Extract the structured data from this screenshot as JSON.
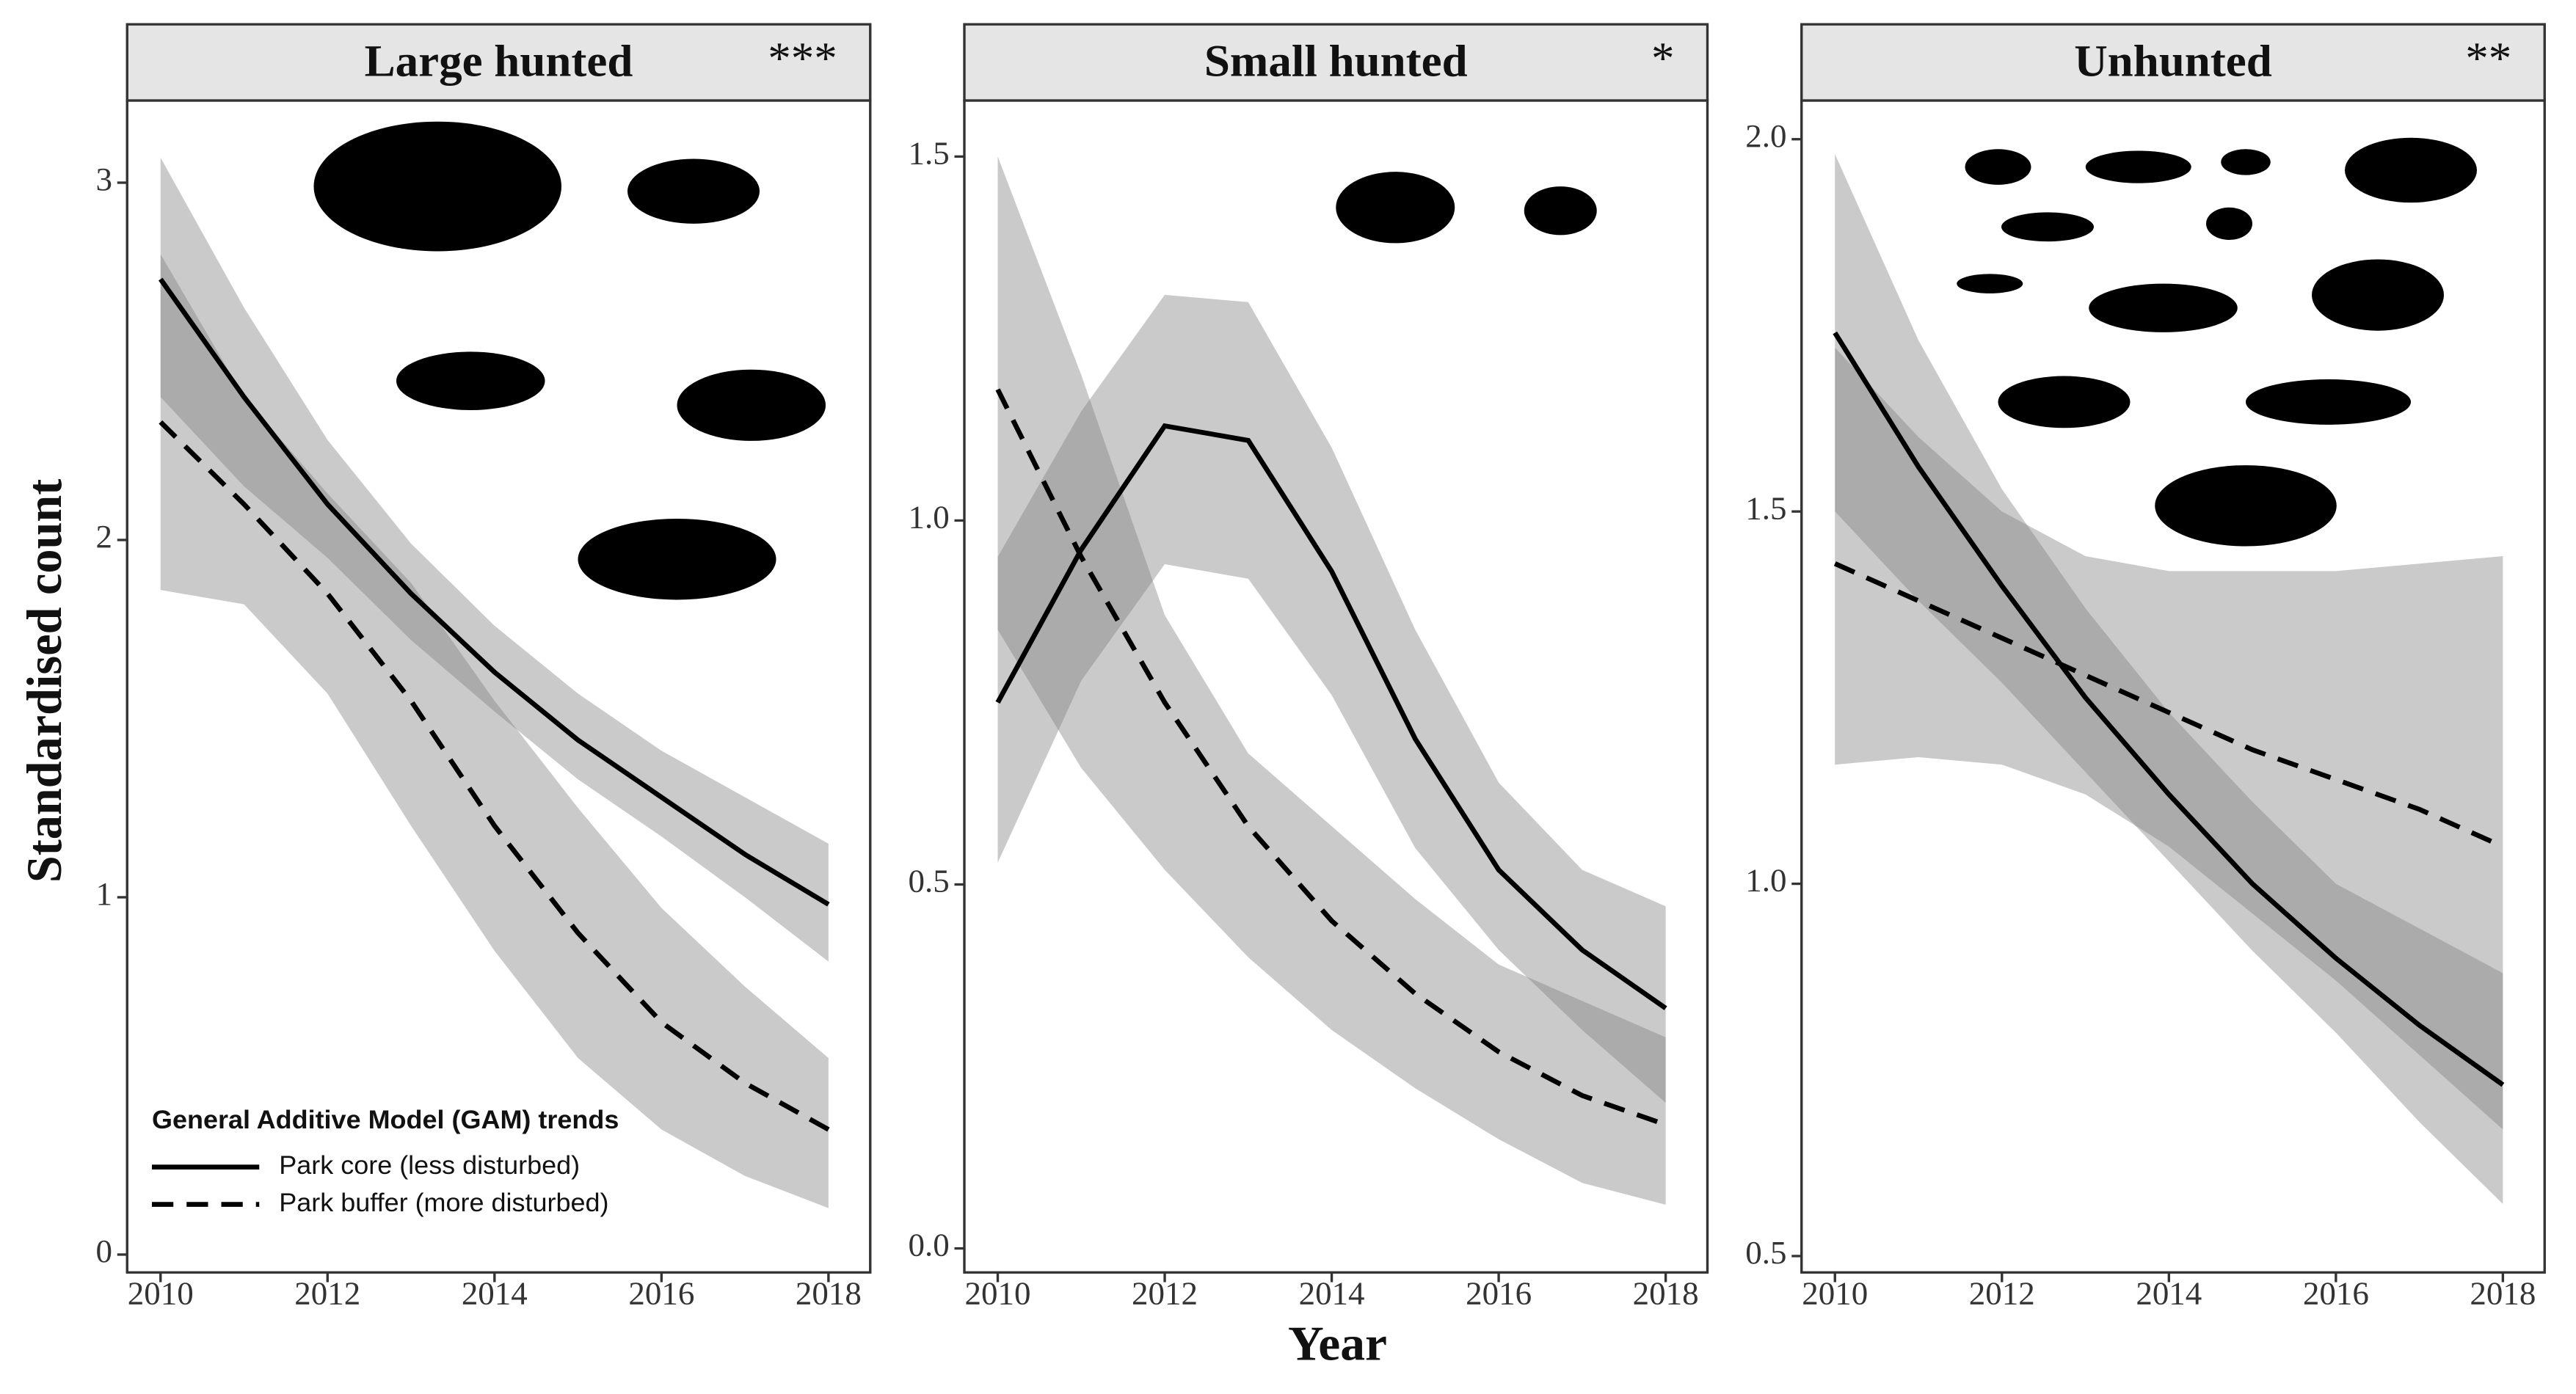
{
  "axis_titles": {
    "x": "Year",
    "y": "Standardised count"
  },
  "legend": {
    "title": "General Additive Model (GAM) trends",
    "entries": [
      "Park core (less disturbed)",
      "Park buffer (more disturbed)"
    ]
  },
  "chart_data": [
    {
      "type": "line",
      "title": "Large hunted",
      "significance": "***",
      "band_color": "#808080",
      "x": [
        2010,
        2011,
        2012,
        2013,
        2014,
        2015,
        2016,
        2017,
        2018
      ],
      "xlim": [
        2009.6,
        2018.5
      ],
      "xticks": [
        2010,
        2012,
        2014,
        2016,
        2018
      ],
      "ylim": [
        -0.05,
        3.23
      ],
      "yticks": [
        0,
        1,
        2,
        3
      ],
      "series": [
        {
          "name": "Park core (less disturbed)",
          "color": "#000000",
          "dashed": false,
          "values": [
            2.73,
            2.4,
            2.1,
            1.85,
            1.63,
            1.44,
            1.28,
            1.12,
            0.98
          ],
          "lower": [
            2.4,
            2.15,
            1.95,
            1.72,
            1.52,
            1.33,
            1.17,
            1.0,
            0.82
          ],
          "upper": [
            3.07,
            2.65,
            2.28,
            1.99,
            1.76,
            1.57,
            1.41,
            1.28,
            1.15
          ]
        },
        {
          "name": "Park buffer (more disturbed)",
          "color": "#000000",
          "dashed": true,
          "values": [
            2.33,
            2.1,
            1.85,
            1.55,
            1.2,
            0.9,
            0.65,
            0.48,
            0.35
          ],
          "lower": [
            1.86,
            1.82,
            1.57,
            1.2,
            0.85,
            0.55,
            0.35,
            0.22,
            0.13
          ],
          "upper": [
            2.8,
            2.4,
            2.13,
            1.88,
            1.55,
            1.25,
            0.97,
            0.75,
            0.55
          ]
        }
      ]
    },
    {
      "type": "line",
      "title": "Small hunted",
      "significance": "*",
      "band_color": "#808080",
      "x": [
        2010,
        2011,
        2012,
        2013,
        2014,
        2015,
        2016,
        2017,
        2018
      ],
      "xlim": [
        2009.6,
        2018.5
      ],
      "xticks": [
        2010,
        2012,
        2014,
        2016,
        2018
      ],
      "ylim": [
        -0.033,
        1.577
      ],
      "yticks": [
        {
          "value": 0,
          "label": "0.0"
        },
        0.5,
        {
          "value": 1,
          "label": "1.0"
        },
        1.5
      ],
      "series": [
        {
          "color": "#000000",
          "dashed": false,
          "values": [
            0.75,
            0.96,
            1.13,
            1.11,
            0.93,
            0.7,
            0.52,
            0.41,
            0.33
          ],
          "lower": [
            0.53,
            0.78,
            0.94,
            0.92,
            0.76,
            0.55,
            0.41,
            0.3,
            0.2
          ],
          "upper": [
            0.95,
            1.15,
            1.31,
            1.3,
            1.1,
            0.85,
            0.64,
            0.52,
            0.47
          ]
        },
        {
          "color": "#000000",
          "dashed": true,
          "values": [
            1.18,
            0.95,
            0.75,
            0.58,
            0.45,
            0.35,
            0.27,
            0.21,
            0.17
          ],
          "lower": [
            0.85,
            0.66,
            0.52,
            0.4,
            0.3,
            0.22,
            0.15,
            0.09,
            0.06
          ],
          "upper": [
            1.5,
            1.2,
            0.87,
            0.68,
            0.58,
            0.48,
            0.39,
            0.34,
            0.29
          ]
        }
      ]
    },
    {
      "type": "line",
      "title": "Unhunted",
      "significance": "**",
      "band_color": "#808080",
      "x": [
        2010,
        2011,
        2012,
        2013,
        2014,
        2015,
        2016,
        2017,
        2018
      ],
      "xlim": [
        2009.6,
        2018.5
      ],
      "xticks": [
        2010,
        2012,
        2014,
        2016,
        2018
      ],
      "ylim": [
        0.478,
        2.052
      ],
      "yticks": [
        0.5,
        {
          "value": 1,
          "label": "1.0"
        },
        1.5,
        {
          "value": 2,
          "label": "2.0"
        }
      ],
      "series": [
        {
          "color": "#000000",
          "dashed": false,
          "values": [
            1.74,
            1.56,
            1.4,
            1.25,
            1.12,
            1.0,
            0.9,
            0.81,
            0.73
          ],
          "lower": [
            1.5,
            1.38,
            1.27,
            1.15,
            1.03,
            0.91,
            0.8,
            0.68,
            0.57
          ],
          "upper": [
            1.98,
            1.73,
            1.53,
            1.37,
            1.23,
            1.11,
            1.0,
            0.94,
            0.88
          ]
        },
        {
          "color": "#000000",
          "dashed": true,
          "values": [
            1.43,
            1.38,
            1.33,
            1.28,
            1.23,
            1.18,
            1.14,
            1.1,
            1.05
          ],
          "lower": [
            1.16,
            1.17,
            1.16,
            1.12,
            1.05,
            0.96,
            0.87,
            0.77,
            0.67
          ],
          "upper": [
            1.72,
            1.6,
            1.5,
            1.44,
            1.42,
            1.42,
            1.42,
            1.43,
            1.44
          ]
        }
      ]
    }
  ]
}
